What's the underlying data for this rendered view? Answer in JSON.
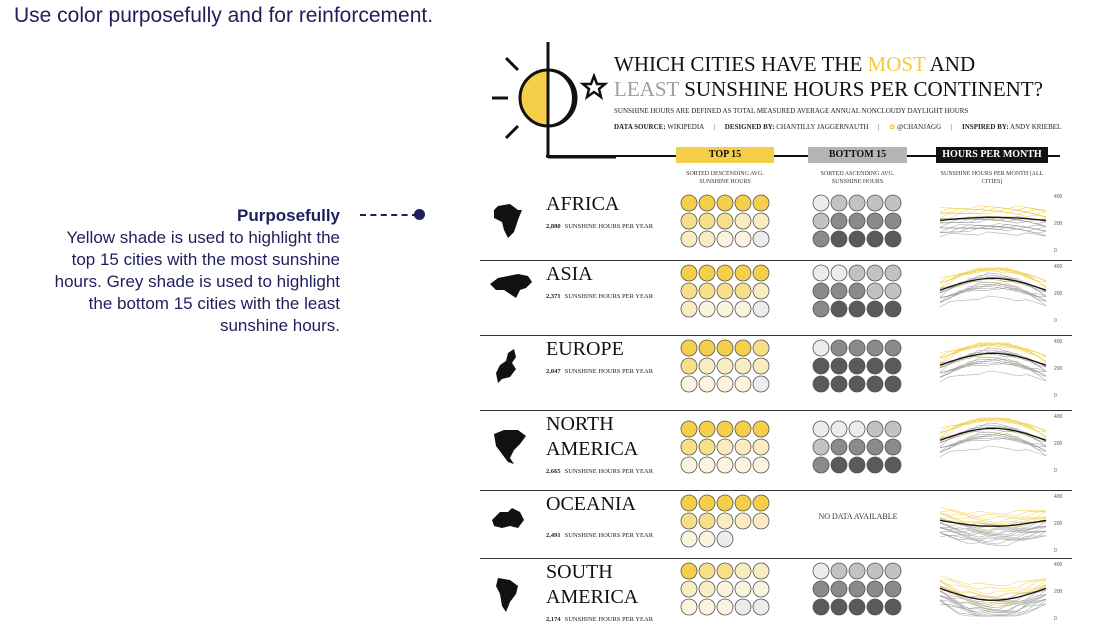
{
  "slide": {
    "title": "Use color purposefully and for reinforcement.",
    "annotation": {
      "heading": "Purposefully",
      "lines": [
        "Yellow shade is used to highlight the",
        "top 15 cities with the most sunshine",
        "hours. Grey shade is used to highlight",
        "the bottom 15 cities with the least",
        "sunshine hours."
      ]
    }
  },
  "infographic": {
    "title": {
      "line1_a": "WHICH CITIES HAVE THE ",
      "line1_most": "MOST",
      "line1_b": " AND",
      "line2_least": "LEAST",
      "line2_b": " SUNSHINE HOURS PER CONTINENT?"
    },
    "subtitle": "SUNSHINE HOURS ARE DEFINED AS TOTAL MEASURED AVERAGE ANNUAL NONCLOUDY DAYLIGHT HOURS",
    "credits": {
      "source_label": "DATA SOURCE:",
      "source": "WIKIPEDIA",
      "designer_label": "DESIGNED BY:",
      "designer": "CHANTILLY JAGGERNAUTH",
      "twitter": "@CHANJAGG",
      "inspired_label": "INSPIRED BY:",
      "inspired": "ANDY KRIEBEL"
    },
    "headers": {
      "top": "TOP 15",
      "top_sub": "SORTED DESCENDING AVG. SUNSHINE HOURS",
      "bottom": "BOTTOM 15",
      "bottom_sub": "SORTED ASCENDING AVG. SUNSHINE HOURS",
      "hpm": "HOURS PER MONTH",
      "hpm_sub": "SUNSHINE HOURS PER MONTH (ALL CITIES)"
    },
    "hours_suffix": "SUNSHINE HOURS PER YEAR",
    "no_data": "NO DATA AVAILABLE",
    "axis_ticks": [
      "400",
      "200",
      "0"
    ],
    "colors": {
      "yellow_1": "#f5cf4a",
      "yellow_2": "#f7df8a",
      "yellow_3": "#f9ecc0",
      "yellow_4": "#fbf5e0",
      "grey_1": "#ececec",
      "grey_2": "#c2c2c2",
      "grey_3": "#8a8a8a",
      "grey_4": "#5a5a5a"
    },
    "continents": [
      {
        "name_1": "AFRICA",
        "name_2": "",
        "hours": "2,880"
      },
      {
        "name_1": "ASIA",
        "name_2": "",
        "hours": "2,371"
      },
      {
        "name_1": "EUROPE",
        "name_2": "",
        "hours": "2,047"
      },
      {
        "name_1": "NORTH",
        "name_2": "AMERICA",
        "hours": "2,665"
      },
      {
        "name_1": "OCEANIA",
        "name_2": "",
        "hours": "2,491"
      },
      {
        "name_1": "SOUTH",
        "name_2": "AMERICA",
        "hours": "2,174"
      }
    ]
  }
}
